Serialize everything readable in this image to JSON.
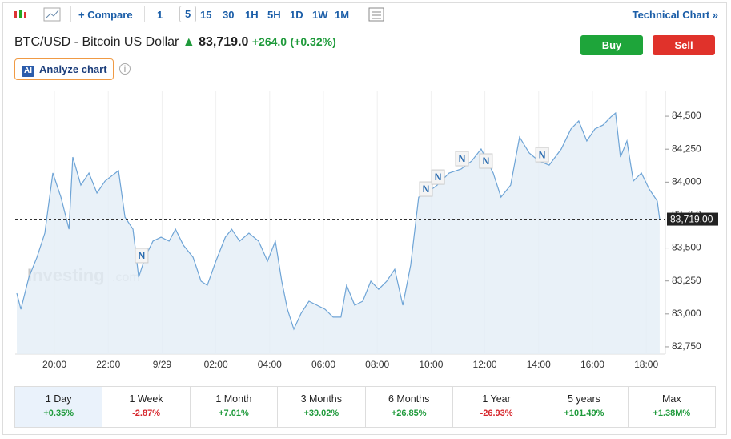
{
  "toolbar": {
    "compare": "Compare",
    "intervals": [
      "1",
      "5",
      "15",
      "30",
      "1H",
      "5H",
      "1D",
      "1W",
      "1M"
    ],
    "active_interval": "5",
    "technical": "Technical Chart »"
  },
  "header": {
    "title": "BTC/USD - Bitcoin US Dollar",
    "price": "83,719.0",
    "change": "+264.0",
    "change_pct": "(+0.32%)",
    "buy": "Buy",
    "sell": "Sell",
    "analyze": "Analyze chart",
    "ai_badge": "AI"
  },
  "chart_data": {
    "type": "line",
    "watermark": "Investing",
    "watermark_suffix": ".com",
    "series": [
      {
        "color": "#6ea4d6",
        "fill": "#e4edf6",
        "x": [
          18.6,
          18.75,
          19.05,
          19.35,
          19.64,
          19.94,
          20.24,
          20.54,
          20.68,
          20.98,
          21.28,
          21.58,
          21.88,
          22.38,
          22.62,
          22.92,
          23.13,
          23.37,
          23.66,
          23.96,
          24.26,
          24.5,
          24.79,
          25.15,
          25.45,
          25.68,
          26,
          26.35,
          26.59,
          26.88,
          27.23,
          27.59,
          27.92,
          28.21,
          28.45,
          28.66,
          28.9,
          29.17,
          29.46,
          29.76,
          30.06,
          30.36,
          30.65,
          30.86,
          31.16,
          31.46,
          31.76,
          32.05,
          32.35,
          32.65,
          32.95,
          33.24,
          33.54,
          33.84,
          34.23,
          34.67,
          35.12,
          35.51,
          35.86,
          36.31,
          36.6,
          36.96,
          37.29,
          37.65,
          38.01,
          38.39,
          38.84,
          39.2,
          39.49,
          39.79,
          40.09,
          40.39,
          40.68,
          40.86,
          41.04,
          41.28,
          41.52,
          41.82,
          42.11,
          42.41,
          42.5
        ],
        "values": [
          83157,
          83035,
          83278,
          83430,
          83613,
          84069,
          83886,
          83643,
          84190,
          83977,
          84069,
          83917,
          84008,
          84087,
          83734,
          83643,
          83278,
          83430,
          83552,
          83582,
          83552,
          83643,
          83522,
          83430,
          83248,
          83217,
          83400,
          83582,
          83643,
          83552,
          83613,
          83552,
          83400,
          83552,
          83248,
          83035,
          82884,
          83005,
          83096,
          83066,
          83035,
          82975,
          82975,
          83217,
          83066,
          83096,
          83248,
          83187,
          83248,
          83339,
          83066,
          83370,
          83886,
          83917,
          83977,
          84069,
          84099,
          84160,
          84251,
          84069,
          83886,
          83977,
          84342,
          84221,
          84160,
          84129,
          84251,
          84403,
          84464,
          84312,
          84403,
          84433,
          84494,
          84524,
          84190,
          84312,
          84008,
          84069,
          83947,
          83856,
          83719
        ]
      }
    ],
    "xlim": [
      18.54,
      42.71
    ],
    "ylim": [
      82695,
      84695
    ],
    "xticks": [
      {
        "value": 20,
        "label": "20:00"
      },
      {
        "value": 22,
        "label": "22:00"
      },
      {
        "value": 24,
        "label": "9/29"
      },
      {
        "value": 26,
        "label": "02:00"
      },
      {
        "value": 28,
        "label": "04:00"
      },
      {
        "value": 30,
        "label": "06:00"
      },
      {
        "value": 32,
        "label": "08:00"
      },
      {
        "value": 34,
        "label": "10:00"
      },
      {
        "value": 36,
        "label": "12:00"
      },
      {
        "value": 38,
        "label": "14:00"
      },
      {
        "value": 40,
        "label": "16:00"
      },
      {
        "value": 42,
        "label": "18:00"
      }
    ],
    "yticks": [
      {
        "value": 82750,
        "label": "82,750"
      },
      {
        "value": 83000,
        "label": "83,000"
      },
      {
        "value": 83250,
        "label": "83,250"
      },
      {
        "value": 83500,
        "label": "83,500"
      },
      {
        "value": 83750,
        "label": "83,750"
      },
      {
        "value": 84000,
        "label": "84,000"
      },
      {
        "value": 84250,
        "label": "84,250"
      },
      {
        "value": 84500,
        "label": "84,500"
      }
    ],
    "last_price": {
      "value": 83719,
      "label": "83,719.00"
    },
    "news_markers": [
      {
        "x": 23.24,
        "y": 83443,
        "label": "N"
      },
      {
        "x": 33.81,
        "y": 83947,
        "label": "N"
      },
      {
        "x": 34.26,
        "y": 84038,
        "label": "N"
      },
      {
        "x": 35.15,
        "y": 84178,
        "label": "N"
      },
      {
        "x": 36.04,
        "y": 84160,
        "label": "N"
      },
      {
        "x": 38.13,
        "y": 84208,
        "label": "N"
      }
    ]
  },
  "periods": [
    {
      "label": "1 Day",
      "change": "+0.35%"
    },
    {
      "label": "1 Week",
      "change": "-2.87%"
    },
    {
      "label": "1 Month",
      "change": "+7.01%"
    },
    {
      "label": "3 Months",
      "change": "+39.02%"
    },
    {
      "label": "6 Months",
      "change": "+26.85%"
    },
    {
      "label": "1 Year",
      "change": "-26.93%"
    },
    {
      "label": "5 years",
      "change": "+101.49%"
    },
    {
      "label": "Max",
      "change": "+1.38M%"
    }
  ]
}
